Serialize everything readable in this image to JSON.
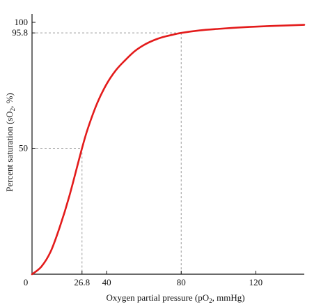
{
  "chart_data": {
    "type": "line",
    "title": "",
    "xlabel": {
      "main": "Oxygen partial pressure (pO",
      "sub": "2",
      "rest": ", mmHg)"
    },
    "ylabel": {
      "main": "Percent saturation (sO",
      "sub": "2",
      "rest": ", %)"
    },
    "xlim": [
      0,
      146
    ],
    "ylim": [
      0,
      100
    ],
    "x_ticks": [
      {
        "value": 0,
        "label": "0"
      },
      {
        "value": 26.8,
        "label": "26.8"
      },
      {
        "value": 40,
        "label": "40"
      },
      {
        "value": 80,
        "label": "80"
      },
      {
        "value": 120,
        "label": "120"
      }
    ],
    "y_ticks": [
      {
        "value": 50,
        "label": "50"
      },
      {
        "value": 95.8,
        "label": "95.8"
      },
      {
        "value": 100,
        "label": "100"
      }
    ],
    "reference_lines": [
      {
        "x": 26.8,
        "y": 50
      },
      {
        "x": 80,
        "y": 95.8
      }
    ],
    "grid": false,
    "series": [
      {
        "color": "#e31b1b",
        "points": [
          [
            0,
            0
          ],
          [
            5,
            3
          ],
          [
            10,
            9
          ],
          [
            15,
            19
          ],
          [
            20,
            31
          ],
          [
            26.8,
            50
          ],
          [
            30,
            58
          ],
          [
            35,
            68
          ],
          [
            40,
            75.5
          ],
          [
            45,
            81
          ],
          [
            50,
            85
          ],
          [
            55,
            88.5
          ],
          [
            60,
            91
          ],
          [
            65,
            92.8
          ],
          [
            70,
            94.1
          ],
          [
            75,
            95
          ],
          [
            80,
            95.8
          ],
          [
            90,
            96.8
          ],
          [
            100,
            97.4
          ],
          [
            110,
            97.9
          ],
          [
            120,
            98.3
          ],
          [
            130,
            98.6
          ],
          [
            146,
            99
          ]
        ]
      }
    ]
  }
}
